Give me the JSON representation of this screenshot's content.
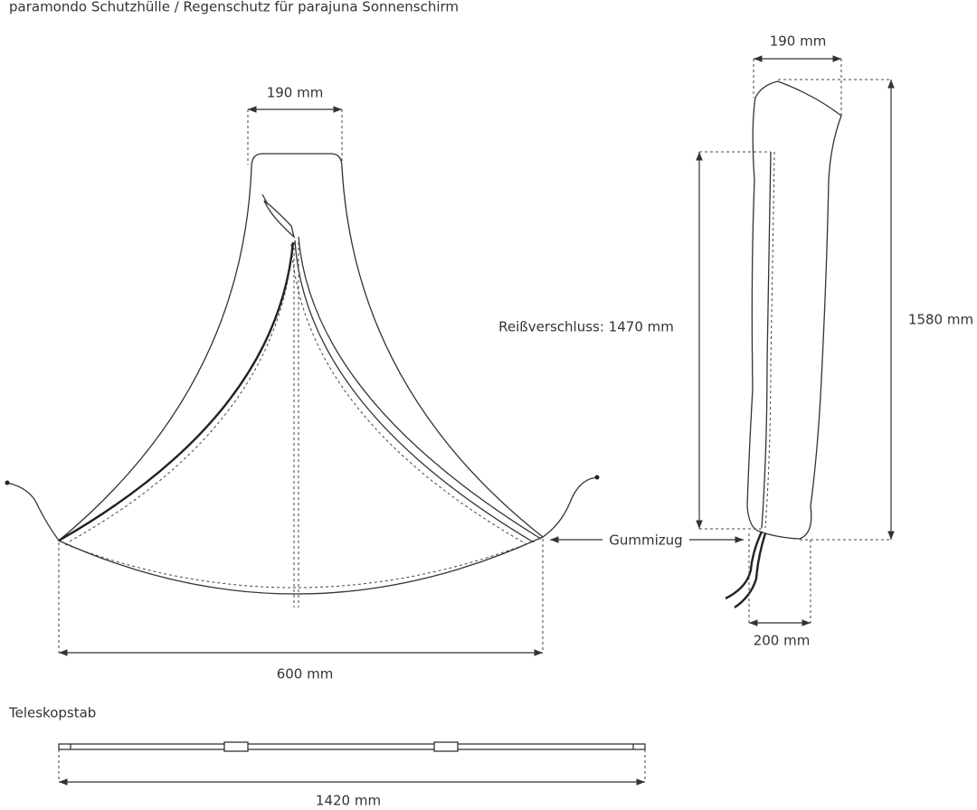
{
  "header": {
    "title": "paramondo Schutzhülle / Regenschutz für parajuna Sonnenschirm"
  },
  "front_view": {
    "top_width": "190 mm",
    "bottom_width": "600 mm",
    "elastic": "Gummizug"
  },
  "side_view": {
    "top_width": "190 mm",
    "zipper": "Reißverschluss: 1470 mm",
    "height": "1580 mm",
    "bottom_width": "200 mm"
  },
  "pole": {
    "label": "Teleskopstab",
    "length": "1420 mm"
  }
}
